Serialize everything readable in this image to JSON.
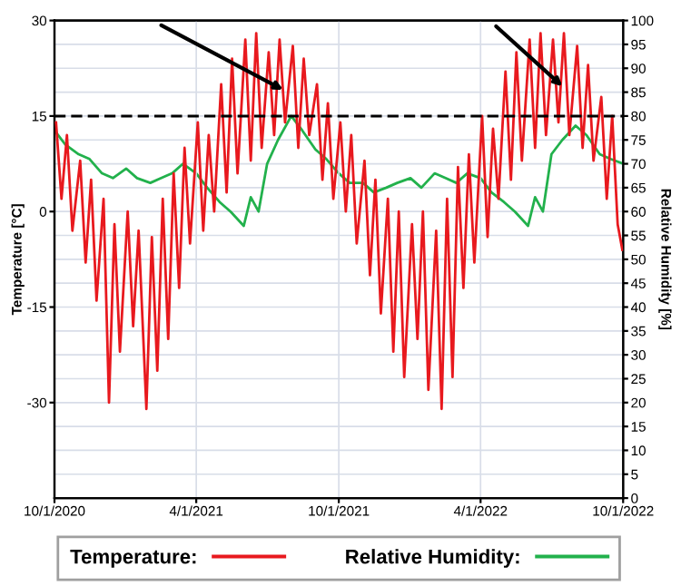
{
  "chart_data": {
    "type": "line",
    "ylabel": "Temperature [°C]",
    "y2label": "Relative Humidity [%]",
    "xlim": [
      "2020-10-01",
      "2022-10-01"
    ],
    "xticks": [
      {
        "value": "2020-10-01",
        "label": "10/1/2020"
      },
      {
        "value": "2021-04-01",
        "label": "4/1/2021"
      },
      {
        "value": "2021-10-01",
        "label": "10/1/2021"
      },
      {
        "value": "2022-04-01",
        "label": "4/1/2022"
      },
      {
        "value": "2022-10-01",
        "label": "10/1/2022"
      }
    ],
    "ylim": [
      -45,
      30
    ],
    "yticks": [
      -30,
      -15,
      0,
      15,
      30
    ],
    "y2lim": [
      0,
      100
    ],
    "y2ticks": [
      0,
      5,
      10,
      15,
      20,
      25,
      30,
      35,
      40,
      45,
      50,
      55,
      60,
      65,
      70,
      75,
      80,
      85,
      90,
      95,
      100
    ],
    "grid": true,
    "legend": "bottom",
    "ref_lines": [
      {
        "axis": "y",
        "value": 15,
        "color": "#000000",
        "line_style": "dashed"
      }
    ],
    "series": [
      {
        "name": "Temperature:",
        "color": "#e8191e",
        "x": [
          "2020-10-03",
          "2020-10-10",
          "2020-10-17",
          "2020-10-24",
          "2020-11-03",
          "2020-11-10",
          "2020-11-17",
          "2020-11-24",
          "2020-12-03",
          "2020-12-10",
          "2020-12-17",
          "2020-12-24",
          "2021-01-03",
          "2021-01-10",
          "2021-01-17",
          "2021-01-27",
          "2021-02-03",
          "2021-02-10",
          "2021-02-17",
          "2021-02-24",
          "2021-03-03",
          "2021-03-10",
          "2021-03-17",
          "2021-03-24",
          "2021-04-03",
          "2021-04-10",
          "2021-04-17",
          "2021-04-24",
          "2021-05-03",
          "2021-05-10",
          "2021-05-17",
          "2021-05-24",
          "2021-06-03",
          "2021-06-10",
          "2021-06-17",
          "2021-06-24",
          "2021-07-03",
          "2021-07-10",
          "2021-07-17",
          "2021-07-24",
          "2021-08-03",
          "2021-08-10",
          "2021-08-17",
          "2021-08-24",
          "2021-09-03",
          "2021-09-10",
          "2021-09-17",
          "2021-09-24",
          "2021-10-03",
          "2021-10-10",
          "2021-10-17",
          "2021-10-24",
          "2021-11-03",
          "2021-11-10",
          "2021-11-17",
          "2021-11-24",
          "2021-12-03",
          "2021-12-10",
          "2021-12-17",
          "2021-12-24",
          "2022-01-03",
          "2022-01-10",
          "2022-01-17",
          "2022-01-24",
          "2022-02-03",
          "2022-02-10",
          "2022-02-17",
          "2022-02-24",
          "2022-03-03",
          "2022-03-10",
          "2022-03-17",
          "2022-03-24",
          "2022-04-03",
          "2022-04-10",
          "2022-04-17",
          "2022-04-24",
          "2022-05-03",
          "2022-05-10",
          "2022-05-17",
          "2022-05-24",
          "2022-06-03",
          "2022-06-10",
          "2022-06-17",
          "2022-06-24",
          "2022-07-03",
          "2022-07-10",
          "2022-07-17",
          "2022-07-24",
          "2022-08-03",
          "2022-08-10",
          "2022-08-17",
          "2022-08-24",
          "2022-09-03",
          "2022-09-10",
          "2022-09-17",
          "2022-09-24",
          "2022-09-30"
        ],
        "values": [
          14,
          2,
          12,
          -3,
          8,
          -8,
          5,
          -14,
          2,
          -30,
          -2,
          -22,
          0,
          -18,
          -3,
          -31,
          -4,
          -25,
          2,
          -20,
          6,
          -12,
          10,
          -5,
          14,
          -3,
          12,
          0,
          20,
          3,
          24,
          6,
          27,
          8,
          28,
          10,
          25,
          12,
          27,
          14,
          26,
          10,
          24,
          12,
          20,
          5,
          17,
          2,
          14,
          0,
          12,
          -5,
          8,
          -10,
          5,
          -16,
          2,
          -22,
          0,
          -26,
          -2,
          -20,
          0,
          -28,
          -3,
          -31,
          2,
          -26,
          7,
          -12,
          9,
          -8,
          15,
          -4,
          13,
          2,
          22,
          5,
          25,
          8,
          27,
          10,
          28,
          12,
          27,
          14,
          28,
          12,
          26,
          10,
          23,
          8,
          18,
          2,
          15,
          -2,
          -6
        ]
      },
      {
        "name": "Relative Humidity:",
        "color": "#22b14c",
        "axis": "y2",
        "x": [
          "2020-10-01",
          "2020-10-15",
          "2020-11-01",
          "2020-11-15",
          "2020-12-01",
          "2020-12-15",
          "2021-01-01",
          "2021-01-15",
          "2021-02-01",
          "2021-02-15",
          "2021-03-01",
          "2021-03-15",
          "2021-04-01",
          "2021-04-15",
          "2021-05-01",
          "2021-05-15",
          "2021-06-01",
          "2021-06-10",
          "2021-06-20",
          "2021-07-01",
          "2021-07-15",
          "2021-08-01",
          "2021-08-15",
          "2021-09-01",
          "2021-09-15",
          "2021-10-01",
          "2021-10-15",
          "2021-11-01",
          "2021-11-15",
          "2021-12-01",
          "2021-12-15",
          "2022-01-01",
          "2022-01-15",
          "2022-02-01",
          "2022-02-15",
          "2022-03-01",
          "2022-03-15",
          "2022-04-01",
          "2022-04-15",
          "2022-05-01",
          "2022-05-15",
          "2022-06-01",
          "2022-06-10",
          "2022-06-20",
          "2022-07-01",
          "2022-07-15",
          "2022-08-01",
          "2022-08-15",
          "2022-09-01",
          "2022-09-15",
          "2022-10-01"
        ],
        "values": [
          77,
          74,
          72,
          71,
          68,
          67,
          69,
          67,
          66,
          67,
          68,
          70,
          68,
          65,
          62,
          60,
          57,
          63,
          60,
          70,
          75,
          80,
          77,
          73,
          71,
          68,
          66,
          66,
          64,
          65,
          66,
          67,
          65,
          68,
          67,
          66,
          68,
          67,
          64,
          62,
          60,
          57,
          63,
          60,
          72,
          75,
          78,
          76,
          72,
          71,
          70
        ]
      }
    ]
  }
}
